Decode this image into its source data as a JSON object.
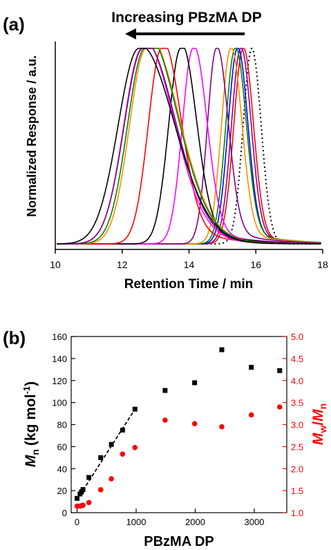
{
  "chart_data": [
    {
      "type": "line",
      "panel_label": "(a)",
      "annotation": "Increasing PBzMA DP",
      "xlabel": "Retention Time / min",
      "ylabel": "Normalized Response / a.u.",
      "xlim": [
        10,
        18
      ],
      "xticks": [
        10,
        12,
        14,
        16,
        18
      ],
      "grid": false,
      "series": [
        {
          "color": "#000000",
          "dash": "dotted",
          "peak": 15.88,
          "sl": 0.26,
          "sr": 0.28,
          "tail": 0.0
        },
        {
          "color": "#ff0000",
          "dash": "solid",
          "peak": 15.62,
          "sl": 0.28,
          "sr": 0.3,
          "tail": 0.05
        },
        {
          "color": "#8b008b",
          "dash": "solid",
          "peak": 15.55,
          "sl": 0.28,
          "sr": 0.3,
          "tail": 0.06
        },
        {
          "color": "#0000ff",
          "dash": "solid",
          "peak": 15.45,
          "sl": 0.28,
          "sr": 0.3,
          "tail": 0.07
        },
        {
          "color": "#008000",
          "dash": "solid",
          "peak": 15.38,
          "sl": 0.28,
          "sr": 0.32,
          "tail": 0.08
        },
        {
          "color": "#ff8c00",
          "dash": "solid",
          "peak": 15.25,
          "sl": 0.28,
          "sr": 0.32,
          "tail": 0.08
        },
        {
          "color": "#800080",
          "dash": "solid",
          "peak": 14.82,
          "sl": 0.27,
          "sr": 0.34,
          "tail": 0.09
        },
        {
          "color": "#ff00ff",
          "dash": "solid",
          "peak": 14.12,
          "sl": 0.32,
          "sr": 0.4,
          "tail": 0.1
        },
        {
          "color": "#000000",
          "dash": "solid",
          "peak": 13.75,
          "sl": 0.36,
          "sr": 0.45,
          "tail": 0.12
        },
        {
          "color": "#ff0000",
          "dash": "solid",
          "peak": 13.18,
          "sl": 0.4,
          "sr": 0.55,
          "tail": 0.14
        },
        {
          "color": "#ff8c00",
          "dash": "solid",
          "peak": 12.72,
          "sl": 0.5,
          "sr": 0.95,
          "tail": 0.16
        },
        {
          "color": "#008000",
          "dash": "solid",
          "peak": 12.68,
          "sl": 0.52,
          "sr": 0.95,
          "tail": 0.18
        },
        {
          "color": "#ff00ff",
          "dash": "solid",
          "peak": 12.6,
          "sl": 0.55,
          "sr": 0.92,
          "tail": 0.12
        },
        {
          "color": "#800080",
          "dash": "solid",
          "peak": 12.62,
          "sl": 0.56,
          "sr": 0.95,
          "tail": 0.1
        },
        {
          "color": "#000000",
          "dash": "solid",
          "peak": 12.5,
          "sl": 0.62,
          "sr": 1.05,
          "tail": 0.05
        }
      ]
    },
    {
      "type": "scatter",
      "panel_label": "(b)",
      "xlabel": "PBzMA DP",
      "ylabel_left": "M",
      "ylabel_left_sub": "n",
      "ylabel_left_unit": "(kg mol",
      "ylabel_left_sup": "-1",
      "ylabel_left_close": ")",
      "ylabel_right_m1": "M",
      "ylabel_right_sub1": "w",
      "ylabel_right_slash": "/",
      "ylabel_right_m2": "M",
      "ylabel_right_sub2": "n",
      "xlim": [
        -100,
        3550
      ],
      "xticks": [
        0,
        1000,
        2000,
        3000
      ],
      "ylim_left": [
        0,
        160
      ],
      "yticks_left": [
        0,
        20,
        40,
        60,
        80,
        100,
        120,
        140,
        160
      ],
      "ylim_right": [
        1.0,
        5.0
      ],
      "yticks_right": [
        "1.0",
        "1.5",
        "2.0",
        "2.5",
        "3.0",
        "3.5",
        "4.0",
        "4.5",
        "5.0"
      ],
      "right_axis_color": "#ff0000",
      "grid": false,
      "series": [
        {
          "axis": "left",
          "marker": "square",
          "color": "#000000",
          "points": [
            [
              0,
              13
            ],
            [
              50,
              17
            ],
            [
              75,
              19
            ],
            [
              100,
              21
            ],
            [
              200,
              32
            ],
            [
              400,
              50
            ],
            [
              580,
              62
            ],
            [
              770,
              75
            ],
            [
              980,
              94
            ],
            [
              1490,
              111
            ],
            [
              1990,
              118
            ],
            [
              2450,
              148
            ],
            [
              2950,
              132
            ],
            [
              3430,
              129
            ]
          ]
        },
        {
          "axis": "right",
          "marker": "circle",
          "color": "#ff0000",
          "points": [
            [
              0,
              1.15
            ],
            [
              50,
              1.15
            ],
            [
              75,
              1.16
            ],
            [
              100,
              1.17
            ],
            [
              200,
              1.23
            ],
            [
              400,
              1.52
            ],
            [
              580,
              1.77
            ],
            [
              770,
              2.33
            ],
            [
              980,
              2.48
            ],
            [
              1490,
              3.1
            ],
            [
              1990,
              3.02
            ],
            [
              2450,
              2.95
            ],
            [
              2950,
              3.22
            ],
            [
              3430,
              3.4
            ]
          ]
        }
      ],
      "fit_line": {
        "axis": "left",
        "color": "#000000",
        "dash": "dashed",
        "x": [
          0,
          980
        ],
        "y": [
          12,
          94
        ]
      }
    }
  ]
}
